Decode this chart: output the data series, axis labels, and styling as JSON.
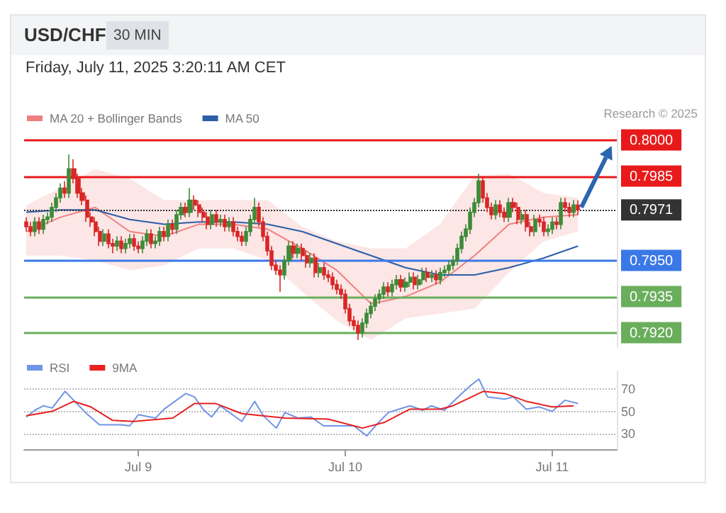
{
  "chart_data": [
    {
      "type": "candlestick",
      "title": "USD/CHF",
      "subtitle": "30 MIN",
      "annotations": [
        "Friday, July 11, 2025 3:20:11 AM CET",
        "Research © 2025"
      ],
      "x": [
        "2025-07-08T11:00",
        "2025-07-08T11:30",
        "2025-07-08T12:00",
        "2025-07-08T12:30",
        "2025-07-08T13:00",
        "2025-07-08T13:30",
        "2025-07-08T14:00",
        "2025-07-08T14:30",
        "2025-07-08T15:00",
        "2025-07-08T15:30",
        "2025-07-08T16:00",
        "2025-07-08T16:30",
        "2025-07-08T17:00",
        "2025-07-08T17:30",
        "2025-07-08T18:00",
        "2025-07-08T18:30",
        "2025-07-08T19:00",
        "2025-07-08T19:30",
        "2025-07-08T20:00",
        "2025-07-08T20:30",
        "2025-07-08T21:00",
        "2025-07-08T21:30",
        "2025-07-08T22:00",
        "2025-07-08T22:30",
        "2025-07-08T23:00",
        "2025-07-08T23:30",
        "2025-07-09T00:00",
        "2025-07-09T00:30",
        "2025-07-09T01:00",
        "2025-07-09T01:30",
        "2025-07-09T02:00",
        "2025-07-09T02:30",
        "2025-07-09T03:00",
        "2025-07-09T03:30",
        "2025-07-09T04:00",
        "2025-07-09T04:30",
        "2025-07-09T05:00",
        "2025-07-09T05:30",
        "2025-07-09T06:00",
        "2025-07-09T06:30",
        "2025-07-09T07:00",
        "2025-07-09T07:30",
        "2025-07-09T08:00",
        "2025-07-09T08:30",
        "2025-07-09T09:00",
        "2025-07-09T09:30",
        "2025-07-09T10:00",
        "2025-07-09T10:30",
        "2025-07-09T11:00",
        "2025-07-09T11:30",
        "2025-07-09T12:00",
        "2025-07-09T12:30",
        "2025-07-09T13:00",
        "2025-07-09T13:30",
        "2025-07-09T14:00",
        "2025-07-09T14:30",
        "2025-07-09T15:00",
        "2025-07-09T15:30",
        "2025-07-09T16:00",
        "2025-07-09T16:30",
        "2025-07-09T17:00",
        "2025-07-09T17:30",
        "2025-07-09T18:00",
        "2025-07-09T18:30",
        "2025-07-09T19:00",
        "2025-07-09T19:30",
        "2025-07-09T20:00",
        "2025-07-09T20:30",
        "2025-07-09T21:00",
        "2025-07-09T21:30",
        "2025-07-09T22:00",
        "2025-07-09T22:30",
        "2025-07-09T23:00",
        "2025-07-09T23:30",
        "2025-07-10T00:00",
        "2025-07-10T00:30",
        "2025-07-10T01:00",
        "2025-07-10T01:30",
        "2025-07-10T02:00",
        "2025-07-10T02:30",
        "2025-07-10T03:00",
        "2025-07-10T03:30",
        "2025-07-10T04:00",
        "2025-07-10T04:30",
        "2025-07-10T05:00",
        "2025-07-10T05:30",
        "2025-07-10T06:00",
        "2025-07-10T06:30",
        "2025-07-10T07:00",
        "2025-07-10T07:30",
        "2025-07-10T08:00",
        "2025-07-10T08:30",
        "2025-07-10T09:00",
        "2025-07-10T09:30",
        "2025-07-10T10:00",
        "2025-07-10T10:30",
        "2025-07-10T11:00",
        "2025-07-10T11:30",
        "2025-07-10T12:00",
        "2025-07-10T12:30",
        "2025-07-10T13:00",
        "2025-07-10T13:30",
        "2025-07-10T14:00",
        "2025-07-10T14:30",
        "2025-07-10T15:00",
        "2025-07-10T15:30",
        "2025-07-10T16:00",
        "2025-07-10T16:30",
        "2025-07-10T17:00",
        "2025-07-10T17:30",
        "2025-07-10T18:00",
        "2025-07-10T18:30",
        "2025-07-10T19:00",
        "2025-07-10T19:30",
        "2025-07-10T20:00",
        "2025-07-10T20:30",
        "2025-07-10T21:00",
        "2025-07-10T21:30",
        "2025-07-10T22:00",
        "2025-07-10T22:30",
        "2025-07-10T23:00",
        "2025-07-10T23:30",
        "2025-07-11T00:00",
        "2025-07-11T00:30",
        "2025-07-11T01:00",
        "2025-07-11T01:30",
        "2025-07-11T02:00",
        "2025-07-11T02:30",
        "2025-07-11T03:00"
      ],
      "series": [
        {
          "type": "candlestick",
          "colors": [
            "#d92626",
            "#d92626",
            "#3d8b37",
            "#d92626",
            "#3d8b37",
            "#3d8b37",
            "#3d8b37",
            "#3d8b37",
            "#3d8b37",
            "#d92626",
            "#3d8b37",
            "#d92626",
            "#d92626",
            "#d92626",
            "#d92626",
            "#d92626",
            "#d92626",
            "#d92626",
            "#3d8b37",
            "#d92626",
            "#d92626",
            "#3d8b37",
            "#d92626",
            "#3d8b37",
            "#3d8b37",
            "#d92626",
            "#d92626",
            "#3d8b37",
            "#3d8b37",
            "#d92626",
            "#3d8b37",
            "#3d8b37",
            "#d92626",
            "#3d8b37",
            "#d92626",
            "#3d8b37",
            "#3d8b37",
            "#d92626",
            "#3d8b37",
            "#d92626",
            "#d92626",
            "#d92626",
            "#d92626",
            "#3d8b37",
            "#d92626",
            "#3d8b37",
            "#d92626",
            "#3d8b37",
            "#d92626",
            "#d92626",
            "#d92626",
            "#3d8b37",
            "#3d8b37",
            "#3d8b37",
            "#d92626",
            "#d92626",
            "#d92626",
            "#d92626",
            "#d92626",
            "#d92626",
            "#3d8b37",
            "#3d8b37",
            "#d92626",
            "#3d8b37",
            "#d92626",
            "#d92626",
            "#3d8b37",
            "#d92626",
            "#3d8b37",
            "#d92626",
            "#d92626",
            "#d92626",
            "#d92626",
            "#d92626",
            "#d92626",
            "#d92626",
            "#d92626",
            "#d92626",
            "#3d8b37",
            "#3d8b37",
            "#3d8b37",
            "#3d8b37",
            "#3d8b37",
            "#3d8b37",
            "#d92626",
            "#3d8b37",
            "#3d8b37",
            "#d92626",
            "#3d8b37",
            "#3d8b37",
            "#d92626",
            "#3d8b37",
            "#3d8b37",
            "#d92626",
            "#3d8b37",
            "#d92626",
            "#3d8b37",
            "#3d8b37",
            "#3d8b37",
            "#3d8b37",
            "#3d8b37",
            "#3d8b37",
            "#3d8b37",
            "#3d8b37",
            "#3d8b37",
            "#3d8b37",
            "#d92626",
            "#d92626",
            "#d92626",
            "#3d8b37",
            "#d92626",
            "#d92626",
            "#3d8b37",
            "#d92626",
            "#d92626",
            "#3d8b37",
            "#d92626",
            "#d92626",
            "#3d8b37",
            "#d92626",
            "#d92626",
            "#3d8b37",
            "#3d8b37",
            "#d92626",
            "#3d8b37",
            "#d92626",
            "#d92626",
            "#3d8b37",
            "#d92626"
          ],
          "ohlc": [
            [
              0.7966,
              0.7968,
              0.7962,
              0.7964
            ],
            [
              0.7964,
              0.7966,
              0.796,
              0.7962
            ],
            [
              0.7962,
              0.7968,
              0.796,
              0.7966
            ],
            [
              0.7966,
              0.7968,
              0.7961,
              0.7963
            ],
            [
              0.7963,
              0.7969,
              0.7961,
              0.7967
            ],
            [
              0.7967,
              0.797,
              0.7965,
              0.7968
            ],
            [
              0.7968,
              0.7974,
              0.7966,
              0.7972
            ],
            [
              0.7972,
              0.7978,
              0.797,
              0.7976
            ],
            [
              0.7976,
              0.7982,
              0.7974,
              0.798
            ],
            [
              0.798,
              0.7983,
              0.7976,
              0.7978
            ],
            [
              0.7978,
              0.7994,
              0.7976,
              0.7988
            ],
            [
              0.7988,
              0.7992,
              0.7982,
              0.7984
            ],
            [
              0.7984,
              0.7986,
              0.7976,
              0.7978
            ],
            [
              0.7978,
              0.798,
              0.7973,
              0.7975
            ],
            [
              0.7975,
              0.7977,
              0.7966,
              0.7968
            ],
            [
              0.7968,
              0.797,
              0.7964,
              0.7966
            ],
            [
              0.7966,
              0.7968,
              0.796,
              0.7962
            ],
            [
              0.7962,
              0.7964,
              0.7956,
              0.7958
            ],
            [
              0.7958,
              0.7963,
              0.7956,
              0.7961
            ],
            [
              0.7961,
              0.7963,
              0.7955,
              0.7957
            ],
            [
              0.7957,
              0.7959,
              0.7953,
              0.7956
            ],
            [
              0.7956,
              0.796,
              0.7954,
              0.7958
            ],
            [
              0.7958,
              0.796,
              0.7953,
              0.7955
            ],
            [
              0.7955,
              0.7959,
              0.7953,
              0.7957
            ],
            [
              0.7957,
              0.7961,
              0.7955,
              0.7959
            ],
            [
              0.7959,
              0.7961,
              0.7954,
              0.7956
            ],
            [
              0.7956,
              0.7958,
              0.7953,
              0.7955
            ],
            [
              0.7955,
              0.796,
              0.7953,
              0.7958
            ],
            [
              0.7958,
              0.7963,
              0.7956,
              0.7961
            ],
            [
              0.7961,
              0.7963,
              0.7955,
              0.7957
            ],
            [
              0.7957,
              0.796,
              0.7955,
              0.7958
            ],
            [
              0.7958,
              0.7964,
              0.7956,
              0.7962
            ],
            [
              0.7962,
              0.7964,
              0.7958,
              0.796
            ],
            [
              0.796,
              0.7967,
              0.7958,
              0.7965
            ],
            [
              0.7965,
              0.7967,
              0.7961,
              0.7963
            ],
            [
              0.7963,
              0.7971,
              0.7961,
              0.7969
            ],
            [
              0.7969,
              0.7974,
              0.7967,
              0.7972
            ],
            [
              0.7972,
              0.7974,
              0.7968,
              0.797
            ],
            [
              0.797,
              0.798,
              0.7968,
              0.7975
            ],
            [
              0.7975,
              0.7977,
              0.7971,
              0.7973
            ],
            [
              0.7973,
              0.7975,
              0.7968,
              0.797
            ],
            [
              0.797,
              0.7972,
              0.7966,
              0.7968
            ],
            [
              0.7968,
              0.797,
              0.7963,
              0.7965
            ],
            [
              0.7965,
              0.7971,
              0.7963,
              0.7969
            ],
            [
              0.7969,
              0.7971,
              0.7964,
              0.7966
            ],
            [
              0.7966,
              0.7969,
              0.7964,
              0.7967
            ],
            [
              0.7967,
              0.7969,
              0.7962,
              0.7964
            ],
            [
              0.7964,
              0.7968,
              0.7962,
              0.7966
            ],
            [
              0.7966,
              0.7968,
              0.796,
              0.7962
            ],
            [
              0.7962,
              0.7964,
              0.7958,
              0.796
            ],
            [
              0.796,
              0.7962,
              0.7956,
              0.7958
            ],
            [
              0.7958,
              0.7964,
              0.7956,
              0.7962
            ],
            [
              0.7962,
              0.7969,
              0.796,
              0.7967
            ],
            [
              0.7967,
              0.7976,
              0.7965,
              0.7972
            ],
            [
              0.7972,
              0.7974,
              0.7964,
              0.7966
            ],
            [
              0.7966,
              0.7968,
              0.7958,
              0.796
            ],
            [
              0.796,
              0.7962,
              0.7952,
              0.7954
            ],
            [
              0.7954,
              0.7956,
              0.7946,
              0.7948
            ],
            [
              0.7948,
              0.795,
              0.7944,
              0.7946
            ],
            [
              0.7946,
              0.7948,
              0.7937,
              0.7944
            ],
            [
              0.7944,
              0.7952,
              0.7942,
              0.795
            ],
            [
              0.795,
              0.7958,
              0.7948,
              0.7956
            ],
            [
              0.7956,
              0.7958,
              0.7951,
              0.7953
            ],
            [
              0.7953,
              0.7957,
              0.7951,
              0.7955
            ],
            [
              0.7955,
              0.7957,
              0.795,
              0.7952
            ],
            [
              0.7952,
              0.7954,
              0.7947,
              0.7949
            ],
            [
              0.7949,
              0.7953,
              0.7947,
              0.7951
            ],
            [
              0.7951,
              0.7953,
              0.7943,
              0.7945
            ],
            [
              0.7945,
              0.7949,
              0.7943,
              0.7947
            ],
            [
              0.7947,
              0.7949,
              0.7942,
              0.7944
            ],
            [
              0.7944,
              0.7946,
              0.7941,
              0.7943
            ],
            [
              0.7943,
              0.7945,
              0.7938,
              0.794
            ],
            [
              0.794,
              0.7942,
              0.7936,
              0.7938
            ],
            [
              0.7938,
              0.794,
              0.7934,
              0.7936
            ],
            [
              0.7936,
              0.7938,
              0.7928,
              0.793
            ],
            [
              0.793,
              0.7932,
              0.7923,
              0.7925
            ],
            [
              0.7925,
              0.7927,
              0.7921,
              0.7923
            ],
            [
              0.7923,
              0.7925,
              0.7917,
              0.792
            ],
            [
              0.792,
              0.7926,
              0.7918,
              0.7924
            ],
            [
              0.7924,
              0.793,
              0.7922,
              0.7928
            ],
            [
              0.7928,
              0.7933,
              0.7926,
              0.7931
            ],
            [
              0.7931,
              0.7936,
              0.7929,
              0.7934
            ],
            [
              0.7934,
              0.7938,
              0.7932,
              0.7936
            ],
            [
              0.7936,
              0.7941,
              0.7934,
              0.7939
            ],
            [
              0.7939,
              0.7941,
              0.7935,
              0.7937
            ],
            [
              0.7937,
              0.7942,
              0.7935,
              0.794
            ],
            [
              0.794,
              0.7944,
              0.7938,
              0.7942
            ],
            [
              0.7942,
              0.7944,
              0.7937,
              0.7939
            ],
            [
              0.7939,
              0.7943,
              0.7937,
              0.7941
            ],
            [
              0.7941,
              0.7945,
              0.7939,
              0.7943
            ],
            [
              0.7943,
              0.7945,
              0.7938,
              0.794
            ],
            [
              0.794,
              0.7944,
              0.7938,
              0.7942
            ],
            [
              0.7942,
              0.7947,
              0.794,
              0.7945
            ],
            [
              0.7945,
              0.7947,
              0.7941,
              0.7943
            ],
            [
              0.7943,
              0.7946,
              0.7941,
              0.7944
            ],
            [
              0.7944,
              0.7946,
              0.794,
              0.7942
            ],
            [
              0.7942,
              0.7947,
              0.794,
              0.7945
            ],
            [
              0.7945,
              0.7948,
              0.7943,
              0.7946
            ],
            [
              0.7946,
              0.795,
              0.7944,
              0.7948
            ],
            [
              0.7948,
              0.7952,
              0.7946,
              0.795
            ],
            [
              0.795,
              0.7957,
              0.7948,
              0.7955
            ],
            [
              0.7955,
              0.7962,
              0.7953,
              0.796
            ],
            [
              0.796,
              0.7965,
              0.7958,
              0.7963
            ],
            [
              0.7963,
              0.7972,
              0.7961,
              0.797
            ],
            [
              0.797,
              0.7976,
              0.7968,
              0.7974
            ],
            [
              0.7974,
              0.7986,
              0.7972,
              0.7983
            ],
            [
              0.7983,
              0.7985,
              0.7974,
              0.7976
            ],
            [
              0.7976,
              0.7978,
              0.797,
              0.7972
            ],
            [
              0.7972,
              0.7974,
              0.7967,
              0.7969
            ],
            [
              0.7969,
              0.7975,
              0.7967,
              0.7973
            ],
            [
              0.7973,
              0.7975,
              0.7968,
              0.797
            ],
            [
              0.797,
              0.7972,
              0.7966,
              0.7968
            ],
            [
              0.7968,
              0.7976,
              0.7966,
              0.7974
            ],
            [
              0.7974,
              0.7976,
              0.797,
              0.7972
            ],
            [
              0.7972,
              0.7974,
              0.7965,
              0.7967
            ],
            [
              0.7967,
              0.7971,
              0.7965,
              0.7969
            ],
            [
              0.7969,
              0.7971,
              0.7962,
              0.7964
            ],
            [
              0.7964,
              0.7966,
              0.796,
              0.7962
            ],
            [
              0.7962,
              0.7969,
              0.796,
              0.7967
            ],
            [
              0.7967,
              0.7969,
              0.7964,
              0.7966
            ],
            [
              0.7966,
              0.7968,
              0.796,
              0.7962
            ],
            [
              0.7962,
              0.7965,
              0.796,
              0.7963
            ],
            [
              0.7963,
              0.7968,
              0.7961,
              0.7966
            ],
            [
              0.7966,
              0.7968,
              0.7963,
              0.7965
            ],
            [
              0.7965,
              0.7976,
              0.7963,
              0.7974
            ],
            [
              0.7974,
              0.7976,
              0.797,
              0.7972
            ],
            [
              0.7972,
              0.7974,
              0.7968,
              0.797
            ],
            [
              0.797,
              0.7975,
              0.7968,
              0.7973
            ],
            [
              0.7973,
              0.7975,
              0.7969,
              0.7971
            ]
          ]
        },
        {
          "type": "line",
          "name": "MA 20 + Bollinger Bands",
          "color": "#f08080",
          "x": [
            "2025-07-08T11:00",
            "2025-07-08T15:00",
            "2025-07-08T19:00",
            "2025-07-08T23:00",
            "2025-07-09T03:00",
            "2025-07-09T07:00",
            "2025-07-09T11:00",
            "2025-07-09T15:00",
            "2025-07-09T19:00",
            "2025-07-09T23:00",
            "2025-07-10T03:00",
            "2025-07-10T07:00",
            "2025-07-10T11:00",
            "2025-07-10T15:00",
            "2025-07-10T19:00",
            "2025-07-10T23:00",
            "2025-07-11T03:00"
          ],
          "values": [
            0.7962,
            0.7968,
            0.7972,
            0.7962,
            0.796,
            0.7965,
            0.7965,
            0.7963,
            0.7955,
            0.7946,
            0.7932,
            0.7935,
            0.7941,
            0.7952,
            0.7965,
            0.7968,
            0.7969
          ],
          "upper": [
            0.7973,
            0.798,
            0.7988,
            0.7984,
            0.7975,
            0.7975,
            0.7975,
            0.7975,
            0.7964,
            0.7958,
            0.7955,
            0.7955,
            0.7965,
            0.7985,
            0.7986,
            0.7978,
            0.7976
          ],
          "lower": [
            0.7952,
            0.7952,
            0.795,
            0.7946,
            0.7948,
            0.7955,
            0.7955,
            0.795,
            0.7937,
            0.7925,
            0.7917,
            0.7926,
            0.7928,
            0.793,
            0.7945,
            0.7958,
            0.7962
          ]
        },
        {
          "type": "line",
          "name": "MA 50",
          "color": "#2b5ea7",
          "x": [
            "2025-07-08T11:00",
            "2025-07-08T15:00",
            "2025-07-08T19:00",
            "2025-07-08T23:00",
            "2025-07-09T03:00",
            "2025-07-09T07:00",
            "2025-07-09T11:00",
            "2025-07-09T15:00",
            "2025-07-09T19:00",
            "2025-07-09T23:00",
            "2025-07-10T03:00",
            "2025-07-10T07:00",
            "2025-07-10T11:00",
            "2025-07-10T15:00",
            "2025-07-10T19:00",
            "2025-07-10T23:00",
            "2025-07-11T03:00"
          ],
          "values": [
            0.797,
            0.7971,
            0.7971,
            0.7967,
            0.7965,
            0.7966,
            0.7966,
            0.7965,
            0.7962,
            0.7957,
            0.7952,
            0.7947,
            0.7944,
            0.7944,
            0.7947,
            0.7951,
            0.7956
          ]
        }
      ],
      "xlim": [
        "2025-07-08T10:45",
        "2025-07-11T07:30"
      ],
      "ylim": [
        0.7914,
        0.8004
      ],
      "yticks": [
        {
          "value": 0.8,
          "label": "0.8000"
        },
        {
          "value": 0.7985,
          "label": "0.7985"
        },
        {
          "value": 0.7971,
          "label": "0.7971"
        },
        {
          "value": 0.795,
          "label": "0.7950"
        },
        {
          "value": 0.7935,
          "label": "0.7935"
        },
        {
          "value": 0.792,
          "label": "0.7920"
        }
      ],
      "legend": "top left",
      "marker": "none",
      "ref_lines": [
        {
          "axis": "y",
          "value": 0.8,
          "color": "#e8191a"
        },
        {
          "axis": "y",
          "value": 0.7985,
          "color": "#e8191a"
        },
        {
          "axis": "y",
          "value": 0.7971,
          "color": "#333333",
          "line_style": "dotted"
        },
        {
          "axis": "y",
          "value": 0.795,
          "color": "#3b78e7"
        },
        {
          "axis": "y",
          "value": 0.7935,
          "color": "#6aae5c"
        },
        {
          "axis": "y",
          "value": 0.792,
          "color": "#6aae5c"
        }
      ]
    },
    {
      "type": "line",
      "legend": "top left",
      "marker": "none",
      "grid": "y",
      "xlim": [
        "2025-07-08T10:45",
        "2025-07-11T07:30"
      ],
      "ylim": [
        16,
        86
      ],
      "yticks": [
        30,
        50,
        70
      ],
      "xticks": [
        {
          "value": "2025-07-09",
          "label": "Jul 9"
        },
        {
          "value": "2025-07-10",
          "label": "Jul 10"
        },
        {
          "value": "2025-07-11",
          "label": "Jul 11"
        }
      ],
      "series": [
        {
          "name": "RSI",
          "color": "#7094e6",
          "x": [
            "2025-07-08T11:00",
            "2025-07-08T12:00",
            "2025-07-08T13:00",
            "2025-07-08T14:00",
            "2025-07-08T15:30",
            "2025-07-08T16:30",
            "2025-07-08T18:00",
            "2025-07-08T19:30",
            "2025-07-08T22:00",
            "2025-07-08T23:00",
            "2025-07-09T00:00",
            "2025-07-09T02:00",
            "2025-07-09T03:00",
            "2025-07-09T05:30",
            "2025-07-09T06:30",
            "2025-07-09T07:30",
            "2025-07-09T08:30",
            "2025-07-09T09:30",
            "2025-07-09T12:00",
            "2025-07-09T13:30",
            "2025-07-09T14:30",
            "2025-07-09T16:00",
            "2025-07-09T17:00",
            "2025-07-09T18:30",
            "2025-07-09T20:00",
            "2025-07-09T21:30",
            "2025-07-10T01:00",
            "2025-07-10T02:30",
            "2025-07-10T03:30",
            "2025-07-10T05:00",
            "2025-07-10T07:30",
            "2025-07-10T09:00",
            "2025-07-10T10:00",
            "2025-07-10T11:30",
            "2025-07-10T13:30",
            "2025-07-10T14:30",
            "2025-07-10T15:30",
            "2025-07-10T16:30",
            "2025-07-10T18:30",
            "2025-07-10T19:30",
            "2025-07-10T21:00",
            "2025-07-10T22:30",
            "2025-07-11T00:00",
            "2025-07-11T01:30",
            "2025-07-11T03:00"
          ],
          "values": [
            45,
            51,
            55,
            53,
            68,
            60,
            48,
            38,
            38,
            37,
            47,
            44,
            52,
            66,
            63,
            52,
            45,
            55,
            41,
            59,
            46,
            35,
            49,
            44,
            45,
            37,
            37,
            28,
            37,
            49,
            55,
            51,
            55,
            51,
            66,
            73,
            79,
            63,
            61,
            63,
            52,
            54,
            50,
            60,
            57
          ]
        },
        {
          "name": "9MA",
          "color": "#e82020",
          "x": [
            "2025-07-08T11:00",
            "2025-07-08T14:00",
            "2025-07-08T16:30",
            "2025-07-08T18:30",
            "2025-07-08T21:00",
            "2025-07-08T23:30",
            "2025-07-09T04:00",
            "2025-07-09T06:30",
            "2025-07-09T09:00",
            "2025-07-09T12:00",
            "2025-07-09T17:00",
            "2025-07-09T22:00",
            "2025-07-10T02:00",
            "2025-07-10T04:30",
            "2025-07-10T07:30",
            "2025-07-10T11:00",
            "2025-07-10T12:30",
            "2025-07-10T16:00",
            "2025-07-10T18:30",
            "2025-07-10T21:00",
            "2025-07-11T00:00",
            "2025-07-11T02:30"
          ],
          "values": [
            46,
            50,
            59,
            54,
            42,
            41,
            44,
            57,
            57,
            48,
            44,
            43,
            35,
            40,
            52,
            52,
            55,
            68,
            66,
            59,
            54,
            55
          ]
        }
      ]
    }
  ]
}
